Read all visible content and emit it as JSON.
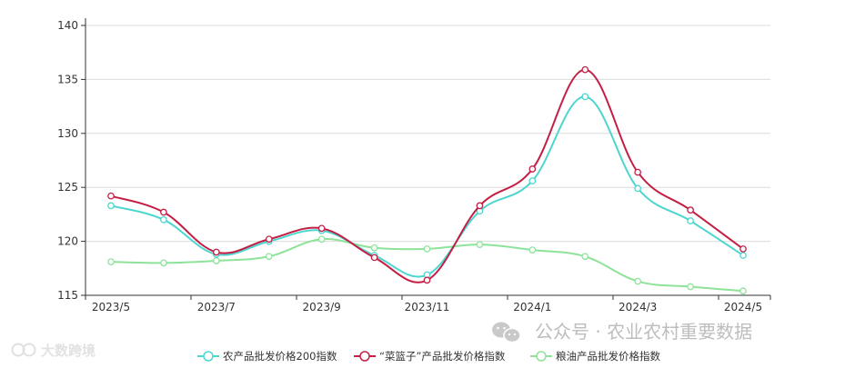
{
  "chart_data": {
    "type": "line",
    "x": [
      "2023/5",
      "2023/6",
      "2023/7",
      "2023/8",
      "2023/9",
      "2023/10",
      "2023/11",
      "2023/12",
      "2024/1",
      "2024/2",
      "2024/3",
      "2024/4",
      "2024/5"
    ],
    "xticks": [
      "2023/5",
      "2023/7",
      "2023/9",
      "2023/11",
      "2024/1",
      "2024/3",
      "2024/5"
    ],
    "yticks": [
      115,
      120,
      125,
      130,
      135,
      140
    ],
    "ylim": [
      115,
      140
    ],
    "grid": true,
    "legend_position": "bottom",
    "series": [
      {
        "name": "农产品批发价格200指数",
        "color": "#4dd6cf",
        "values": [
          123.3,
          122.0,
          118.8,
          120.0,
          121.0,
          118.7,
          116.9,
          122.8,
          125.6,
          133.4,
          124.9,
          121.9,
          118.7
        ]
      },
      {
        "name": "“菜篮子”产品批发价格指数",
        "color": "#c41e45",
        "values": [
          124.2,
          122.7,
          119.0,
          120.2,
          121.2,
          118.5,
          116.4,
          123.3,
          126.7,
          135.9,
          126.4,
          122.9,
          119.3
        ]
      },
      {
        "name": "粮油产品批发价格指数",
        "color": "#8ee29a",
        "values": [
          118.1,
          118.0,
          118.2,
          118.6,
          120.2,
          119.4,
          119.3,
          119.7,
          119.2,
          118.6,
          116.3,
          115.8,
          115.4
        ]
      }
    ]
  },
  "watermark": {
    "wechat": "公众号 · 农业农村重要数据",
    "logo": "大数跨境"
  }
}
